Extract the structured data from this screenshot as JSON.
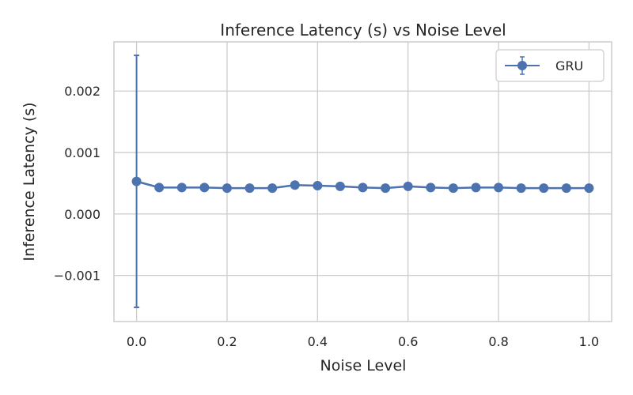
{
  "chart_data": {
    "type": "line",
    "title": "Inference Latency (s) vs Noise Level",
    "xlabel": "Noise Level",
    "ylabel": "Inference Latency (s)",
    "xlim": [
      -0.05,
      1.05
    ],
    "ylim": [
      -0.00175,
      0.0028
    ],
    "xticks": [
      0.0,
      0.2,
      0.4,
      0.6,
      0.8,
      1.0
    ],
    "xtick_labels": [
      "0.0",
      "0.2",
      "0.4",
      "0.6",
      "0.8",
      "1.0"
    ],
    "yticks": [
      -0.001,
      0.0,
      0.001,
      0.002
    ],
    "ytick_labels": [
      "−0.001",
      "0.000",
      "0.001",
      "0.002"
    ],
    "grid": true,
    "legend_position": "top-right",
    "series": [
      {
        "name": "GRU",
        "color": "#4c72b0",
        "marker": "circle",
        "x": [
          0.0,
          0.05,
          0.1,
          0.15,
          0.2,
          0.25,
          0.3,
          0.35,
          0.4,
          0.45,
          0.5,
          0.55,
          0.6,
          0.65,
          0.7,
          0.75,
          0.8,
          0.85,
          0.9,
          0.95,
          1.0
        ],
        "y": [
          0.00053,
          0.00043,
          0.00043,
          0.00043,
          0.00042,
          0.00042,
          0.00042,
          0.00047,
          0.00046,
          0.00045,
          0.00043,
          0.00042,
          0.00045,
          0.00043,
          0.00042,
          0.00043,
          0.00043,
          0.00042,
          0.00042,
          0.00042,
          0.00042
        ],
        "error": [
          {
            "x": 0.0,
            "lower": -0.00152,
            "upper": 0.00258
          }
        ]
      }
    ]
  }
}
